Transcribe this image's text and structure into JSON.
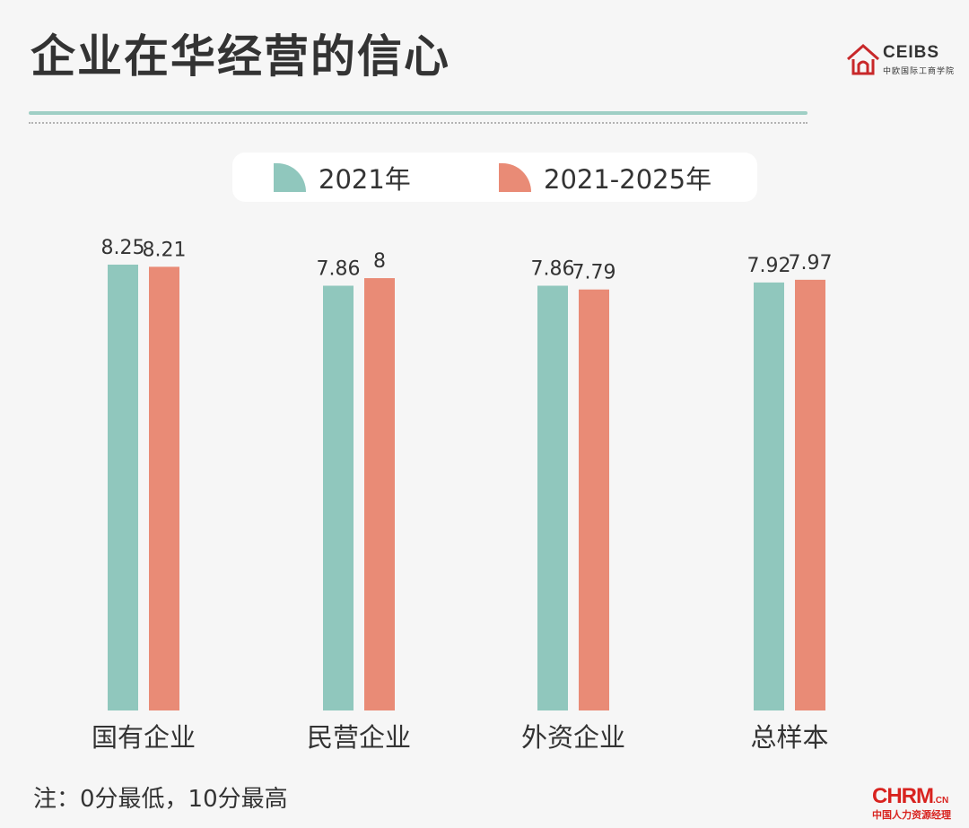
{
  "title": "企业在华经营的信心",
  "logo": {
    "name": "CEIBS",
    "subtitle": "中欧国际工商学院"
  },
  "legend": [
    {
      "label": "2021年",
      "color": "#90c7bd"
    },
    {
      "label": "2021-2025年",
      "color": "#e98b76"
    }
  ],
  "footnote": "注：0分最低，10分最高",
  "watermark": {
    "main": "CHRM",
    "suffix": ".CN",
    "sub": "中国人力资源经理"
  },
  "chart_data": {
    "type": "bar",
    "categories": [
      "国有企业",
      "民营企业",
      "外资企业",
      "总样本"
    ],
    "series": [
      {
        "name": "2021年",
        "values": [
          8.25,
          7.86,
          7.86,
          7.92
        ],
        "labels": [
          "8.25",
          "7.86",
          "7.86",
          "7.92"
        ],
        "color": "#90c7bd"
      },
      {
        "name": "2021-2025年",
        "values": [
          8.21,
          8,
          7.79,
          7.97
        ],
        "labels": [
          "8.21",
          "8",
          "7.79",
          "7.97"
        ],
        "color": "#e98b76"
      }
    ],
    "title": "企业在华经营的信心",
    "xlabel": "",
    "ylabel": "",
    "ylim": [
      0,
      8.25
    ],
    "grid": false,
    "legend_position": "top-center"
  }
}
